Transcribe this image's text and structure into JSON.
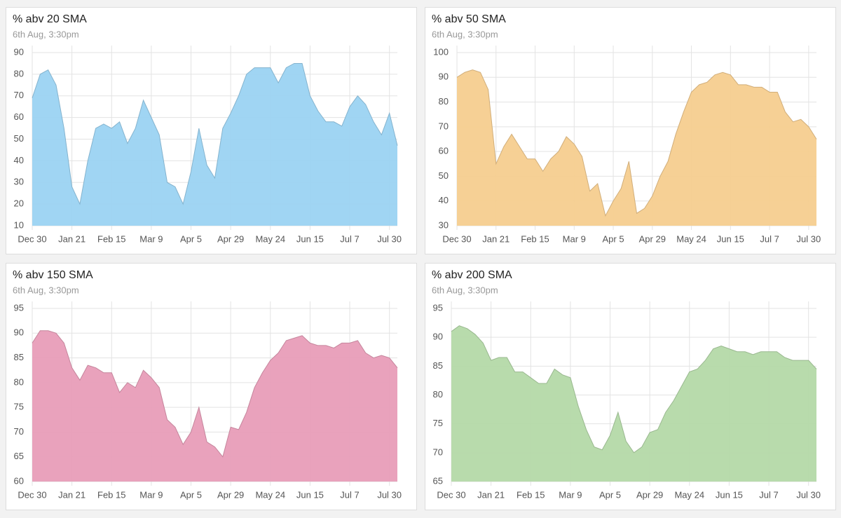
{
  "chart_data": [
    {
      "type": "area",
      "title": "% abv 20 SMA",
      "subtitle": "6th Aug, 3:30pm",
      "color": "#9bd3f2",
      "categories": [
        "Dec 30",
        null,
        null,
        null,
        null,
        "Jan 21",
        null,
        null,
        null,
        null,
        "Feb 15",
        null,
        null,
        null,
        null,
        "Mar 9",
        null,
        null,
        null,
        null,
        "Apr 5",
        null,
        null,
        null,
        null,
        "Apr 29",
        null,
        null,
        null,
        null,
        "May 24",
        null,
        null,
        null,
        null,
        "Jun 15",
        null,
        null,
        null,
        null,
        "Jul 7",
        null,
        null,
        null,
        null,
        "Jul 30",
        null
      ],
      "values": [
        69,
        80,
        82,
        75,
        55,
        28,
        20,
        40,
        55,
        57,
        55,
        58,
        48,
        55,
        68,
        60,
        52,
        30,
        28,
        20,
        35,
        55,
        38,
        32,
        55,
        62,
        70,
        80,
        83,
        83,
        83,
        76,
        83,
        85,
        85,
        70,
        63,
        58,
        58,
        56,
        65,
        70,
        66,
        58,
        52,
        62,
        47
      ],
      "ylim": [
        10,
        90
      ],
      "yticks": [
        10,
        20,
        30,
        40,
        50,
        60,
        70,
        80,
        90
      ],
      "grid": true
    },
    {
      "type": "area",
      "title": "% abv 50 SMA",
      "subtitle": "6th Aug, 3:30pm",
      "color": "#f6cd8f",
      "categories": [
        "Dec 30",
        null,
        null,
        null,
        null,
        "Jan 21",
        null,
        null,
        null,
        null,
        "Feb 15",
        null,
        null,
        null,
        null,
        "Mar 9",
        null,
        null,
        null,
        null,
        "Apr 5",
        null,
        null,
        null,
        null,
        "Apr 29",
        null,
        null,
        null,
        null,
        "May 24",
        null,
        null,
        null,
        null,
        "Jun 15",
        null,
        null,
        null,
        null,
        "Jul 7",
        null,
        null,
        null,
        null,
        "Jul 30",
        null
      ],
      "values": [
        90,
        92,
        93,
        92,
        85,
        55,
        62,
        67,
        62,
        57,
        57,
        52,
        57,
        60,
        66,
        63,
        58,
        44,
        47,
        34,
        40,
        45,
        56,
        35,
        37,
        42,
        50,
        56,
        67,
        76,
        84,
        87,
        88,
        91,
        92,
        91,
        87,
        87,
        86,
        86,
        84,
        84,
        76,
        72,
        73,
        70,
        65
      ],
      "ylim": [
        30,
        100
      ],
      "yticks": [
        30,
        40,
        50,
        60,
        70,
        80,
        90,
        100
      ],
      "grid": true
    },
    {
      "type": "area",
      "title": "% abv 150 SMA",
      "subtitle": "6th Aug, 3:30pm",
      "color": "#e89db8",
      "categories": [
        "Dec 30",
        null,
        null,
        null,
        null,
        "Jan 21",
        null,
        null,
        null,
        null,
        "Feb 15",
        null,
        null,
        null,
        null,
        "Mar 9",
        null,
        null,
        null,
        null,
        "Apr 5",
        null,
        null,
        null,
        null,
        "Apr 29",
        null,
        null,
        null,
        null,
        "May 24",
        null,
        null,
        null,
        null,
        "Jun 15",
        null,
        null,
        null,
        null,
        "Jul 7",
        null,
        null,
        null,
        null,
        "Jul 30",
        null
      ],
      "values": [
        88,
        90.5,
        90.5,
        90,
        88,
        83,
        80.5,
        83.5,
        83,
        82,
        82,
        78,
        80,
        79,
        82.5,
        81,
        79,
        72.5,
        71,
        67.5,
        70,
        75,
        68,
        67,
        65,
        71,
        70.5,
        74,
        79,
        82,
        84.5,
        86,
        88.5,
        89,
        89.5,
        88,
        87.5,
        87.5,
        87,
        88,
        88,
        88.5,
        86,
        85,
        85.5,
        85,
        83
      ],
      "ylim": [
        60,
        95
      ],
      "yticks": [
        60,
        65,
        70,
        75,
        80,
        85,
        90,
        95
      ],
      "grid": true
    },
    {
      "type": "area",
      "title": "% abv 200 SMA",
      "subtitle": "6th Aug, 3:30pm",
      "color": "#b4d9a8",
      "categories": [
        "Dec 30",
        null,
        null,
        null,
        null,
        "Jan 21",
        null,
        null,
        null,
        null,
        "Feb 15",
        null,
        null,
        null,
        null,
        "Mar 9",
        null,
        null,
        null,
        null,
        "Apr 5",
        null,
        null,
        null,
        null,
        "Apr 29",
        null,
        null,
        null,
        null,
        "May 24",
        null,
        null,
        null,
        null,
        "Jun 15",
        null,
        null,
        null,
        null,
        "Jul 7",
        null,
        null,
        null,
        null,
        "Jul 30",
        null
      ],
      "values": [
        91,
        92,
        91.5,
        90.5,
        89,
        86,
        86.5,
        86.5,
        84,
        84,
        83,
        82,
        82,
        84.5,
        83.5,
        83,
        78,
        74,
        71,
        70.5,
        73,
        77,
        72,
        70,
        71,
        73.5,
        74,
        77,
        79,
        81.5,
        84,
        84.5,
        86,
        88,
        88.5,
        88,
        87.5,
        87.5,
        87,
        87.5,
        87.5,
        87.5,
        86.5,
        86,
        86,
        86,
        84.5
      ],
      "ylim": [
        65,
        95
      ],
      "yticks": [
        65,
        70,
        75,
        80,
        85,
        90,
        95
      ],
      "grid": true
    }
  ]
}
